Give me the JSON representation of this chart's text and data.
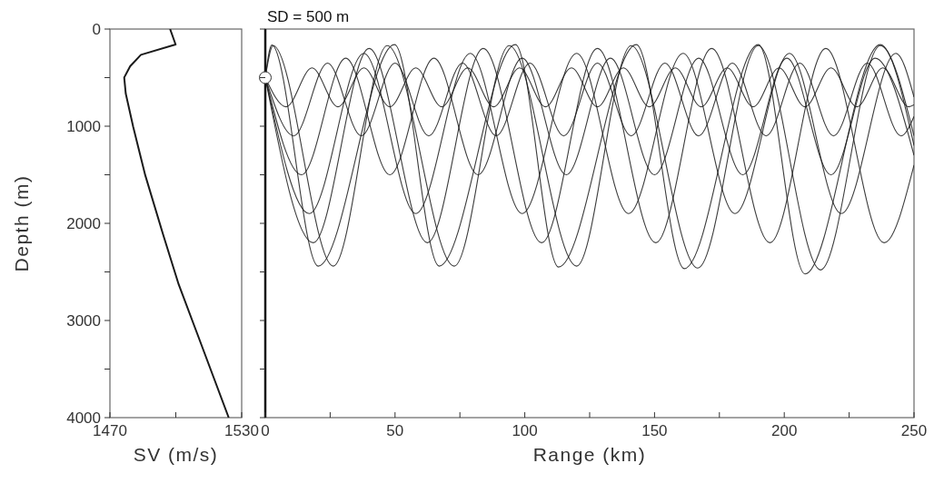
{
  "chart_data": [
    {
      "type": "line",
      "xlabel": "SV (m/s)",
      "ylabel": "Depth (m)",
      "xlim": [
        1470,
        1530
      ],
      "xticks": [
        1470,
        {
          "value": 1500,
          "label": null
        },
        1530
      ],
      "ylim": [
        4000,
        0
      ],
      "yticks": [
        0,
        {
          "value": 500,
          "label": null
        },
        1000,
        {
          "value": 1500,
          "label": null
        },
        2000,
        {
          "value": 2500,
          "label": null
        },
        3000,
        {
          "value": 3500,
          "label": null
        },
        4000
      ],
      "series": [
        {
          "color": "#1a1a1a",
          "x": [
            1497.4,
            1499.9,
            1484.1,
            1479.2,
            1476.5,
            1477.2,
            1480.6,
            1486.1,
            1494.4,
            1501.3,
            1509.6,
            1524.1
          ],
          "values": [
            0,
            159,
            265,
            383,
            499,
            664,
            1007,
            1506,
            2129,
            2628,
            3126,
            4000
          ]
        }
      ]
    },
    {
      "type": "line",
      "title": "SD = 500 m",
      "xlabel": "Range (km)",
      "xlim": [
        0,
        250
      ],
      "xticks": [
        0,
        {
          "value": 25,
          "label": null
        },
        50,
        {
          "value": 75,
          "label": null
        },
        100,
        {
          "value": 125,
          "label": null
        },
        150,
        {
          "value": 175,
          "label": null
        },
        200,
        {
          "value": 225,
          "label": null
        },
        250
      ],
      "ylim": [
        4000,
        0
      ],
      "yticks": [
        0,
        {
          "value": 500,
          "label": null
        },
        1000,
        {
          "value": 1500,
          "label": null
        },
        2000,
        {
          "value": 2500,
          "label": null
        },
        3000,
        {
          "value": 3500,
          "label": null
        },
        4000
      ],
      "tick_labels": "x",
      "series": [
        {
          "color": "#1a1a1a",
          "x": [
            0,
            2.5,
            20.4,
            49.8,
            67,
            96.4,
            113,
            143,
            161.5,
            190,
            208,
            237,
            250
          ],
          "values": [
            500,
            165,
            2440,
            160,
            2440,
            160,
            2450,
            160,
            2466,
            160,
            2521,
            160,
            1200
          ]
        },
        {
          "color": "#1a1a1a",
          "x": [
            0,
            3,
            26.2,
            47,
            72.8,
            94,
            120,
            141,
            166.7,
            190,
            214,
            237,
            250
          ],
          "values": [
            500,
            170,
            2440,
            170,
            2440,
            170,
            2440,
            170,
            2460,
            170,
            2480,
            170,
            1100
          ]
        },
        {
          "color": "#1a1a1a",
          "x": [
            0,
            18.5,
            40,
            62.5,
            84,
            106.5,
            128,
            150.5,
            172,
            194.5,
            216,
            238.5,
            250
          ],
          "values": [
            500,
            2200,
            200,
            2200,
            200,
            2200,
            200,
            2200,
            200,
            2200,
            200,
            2200,
            1400
          ]
        },
        {
          "color": "#1a1a1a",
          "x": [
            0,
            17,
            38,
            58,
            79,
            99,
            120,
            140,
            161,
            181,
            202,
            222,
            243,
            250
          ],
          "values": [
            500,
            1900,
            250,
            1900,
            250,
            1900,
            250,
            1900,
            250,
            1900,
            250,
            1900,
            250,
            700
          ]
        },
        {
          "color": "#1a1a1a",
          "x": [
            0,
            14,
            31,
            48,
            65,
            82,
            99,
            116,
            133,
            150,
            167,
            184,
            201,
            218,
            235,
            250
          ],
          "values": [
            500,
            1500,
            300,
            1500,
            300,
            1500,
            300,
            1500,
            300,
            1500,
            300,
            1500,
            300,
            1500,
            300,
            1300
          ]
        },
        {
          "color": "#1a1a1a",
          "x": [
            0,
            11,
            24,
            37,
            50,
            63,
            76,
            89,
            102,
            115,
            128,
            141,
            154,
            167,
            180,
            193,
            206,
            219,
            232,
            245,
            250
          ],
          "values": [
            500,
            1100,
            350,
            1100,
            350,
            1100,
            350,
            1100,
            350,
            1100,
            350,
            1100,
            350,
            1100,
            350,
            1100,
            350,
            1100,
            350,
            1100,
            900
          ]
        },
        {
          "color": "#1a1a1a",
          "x": [
            0,
            8,
            18,
            28,
            38,
            48,
            58,
            68,
            78,
            88,
            98,
            108,
            118,
            128,
            138,
            148,
            158,
            168,
            178,
            188,
            198,
            208,
            218,
            228,
            238,
            248,
            250
          ],
          "values": [
            500,
            800,
            400,
            800,
            400,
            800,
            400,
            800,
            400,
            800,
            400,
            800,
            400,
            800,
            400,
            800,
            400,
            800,
            400,
            800,
            400,
            800,
            400,
            800,
            400,
            800,
            780
          ]
        },
        {
          "type": "scatter",
          "color": "#ffffff",
          "x": [
            0
          ],
          "values": [
            500
          ]
        }
      ]
    }
  ]
}
